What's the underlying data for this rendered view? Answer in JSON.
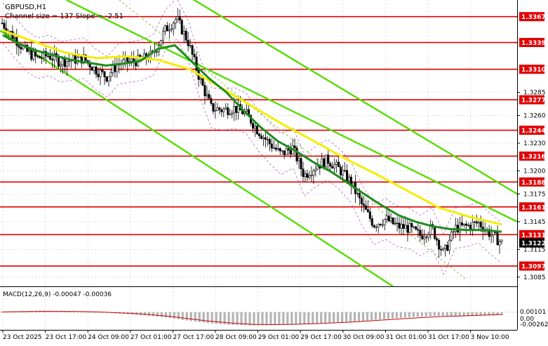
{
  "header": {
    "symbol": "GBPUSD,H1",
    "indicator_text": "Channel size = 137  Slope = -2.51"
  },
  "macd_panel": {
    "label": "MACD(12,26,9) -0.00047 -0.00036",
    "scale_labels": [
      "0.00101",
      "0.00",
      "-0.00262"
    ]
  },
  "colors": {
    "background": "#ffffff",
    "candle": "#000000",
    "grid": "#c8c8c8",
    "level_line": "#e00000",
    "level_label_bg": "#e00000",
    "level_label_text": "#ffffff",
    "current_price_bg": "#000000",
    "channel_bright": "#55dd00",
    "channel_dashed": "#6fbf40",
    "ma_green": "#1e8c1e",
    "ma_yellow": "#f2ee00",
    "bands": "#b060c0",
    "macd_bars": "#b4b4b4",
    "macd_signal": "#cc0000"
  },
  "chart_data": [
    {
      "type": "candlestick",
      "title": "GBPUSD,H1",
      "y_axis_ticks": [
        "1.3285",
        "1.3260",
        "1.3230",
        "1.3200",
        "1.3175",
        "1.3145",
        "1.3115",
        "1.3085"
      ],
      "x_axis_labels": [
        "23 Oct 2025",
        "23 Oct 17:00",
        "24 Oct 09:00",
        "27 Oct 01:00",
        "27 Oct 17:00",
        "28 Oct 09:00",
        "29 Oct 01:00",
        "29 Oct 17:00",
        "30 Oct 09:00",
        "31 Oct 01:00",
        "31 Oct 17:00",
        "3 Nov 10:00"
      ],
      "ylim": [
        1.3075,
        1.3385
      ],
      "grid": true,
      "levels": [
        {
          "label": "1.3367",
          "value": 1.3367
        },
        {
          "label": "1.3339",
          "value": 1.3339
        },
        {
          "label": "1.3310",
          "value": 1.331
        },
        {
          "label": "1.3277",
          "value": 1.3277
        },
        {
          "label": "1.3244",
          "value": 1.3244
        },
        {
          "label": "1.3216",
          "value": 1.3216
        },
        {
          "label": "1.3188",
          "value": 1.3188
        },
        {
          "label": "1.3161",
          "value": 1.3161
        },
        {
          "label": "1.3131",
          "value": 1.3131
        },
        {
          "label": "1.3097",
          "value": 1.3097
        }
      ],
      "current_price": {
        "label": "1.3122",
        "value": 1.3122
      },
      "price_path": [
        1.336,
        1.3345,
        1.333,
        1.3322,
        1.3325,
        1.3318,
        1.332,
        1.3322,
        1.331,
        1.3302,
        1.3316,
        1.3318,
        1.332,
        1.3326,
        1.3352,
        1.3365,
        1.334,
        1.33,
        1.3268,
        1.3266,
        1.3268,
        1.3262,
        1.3244,
        1.323,
        1.3218,
        1.3225,
        1.3195,
        1.3205,
        1.3212,
        1.3202,
        1.3188,
        1.3162,
        1.3142,
        1.3148,
        1.314,
        1.3138,
        1.313,
        1.3138,
        1.311,
        1.3138,
        1.314,
        1.3144,
        1.3132,
        1.3122
      ],
      "moving_average_green": [
        1.3347,
        1.3337,
        1.333,
        1.3325,
        1.332,
        1.3317,
        1.3314,
        1.3316,
        1.3319,
        1.3332,
        1.3336,
        1.3318,
        1.33,
        1.3285,
        1.3265,
        1.3247,
        1.3232,
        1.3222,
        1.321,
        1.32,
        1.3188,
        1.3175,
        1.3163,
        1.3152,
        1.3145,
        1.314,
        1.3137,
        1.3136,
        1.3136,
        1.3134
      ],
      "moving_average_yellow": [
        1.3352,
        1.334,
        1.3328,
        1.3322,
        1.3324,
        1.332,
        1.331,
        1.329,
        1.327,
        1.325,
        1.3232,
        1.3213,
        1.3196,
        1.3178,
        1.316,
        1.315,
        1.3142
      ],
      "regression_channel": {
        "upper": [
          [
            1.339,
            1.3136
          ]
        ],
        "lower": [
          [
            1.3342,
            1.3082
          ]
        ]
      }
    },
    {
      "type": "bar",
      "title": "MACD(12,26,9)",
      "ylim": [
        -0.00262,
        0.00101
      ],
      "values": [
        0.0001,
        0.00018,
        0.00025,
        0.00015,
        5e-05,
        -0.0001,
        -0.00028,
        -0.00055,
        -0.0009,
        -0.0014,
        -0.0018,
        -0.00205,
        -0.00215,
        -0.00208,
        -0.002,
        -0.0018,
        -0.00165,
        -0.0015,
        -0.0012,
        -0.00095,
        -0.0007,
        -0.00058,
        -0.00062,
        -0.00055,
        -0.00047
      ],
      "signal": [
        5e-05,
        0.0001,
        0.00015,
        0.00015,
        0.0001,
        0.0,
        -0.00015,
        -0.00035,
        -0.00065,
        -0.00105,
        -0.00145,
        -0.00175,
        -0.00195,
        -0.002,
        -0.00195,
        -0.00185,
        -0.0017,
        -0.00155,
        -0.00132,
        -0.0011,
        -0.00088,
        -0.0007,
        -0.0006,
        -0.00048,
        -0.00036
      ]
    }
  ]
}
